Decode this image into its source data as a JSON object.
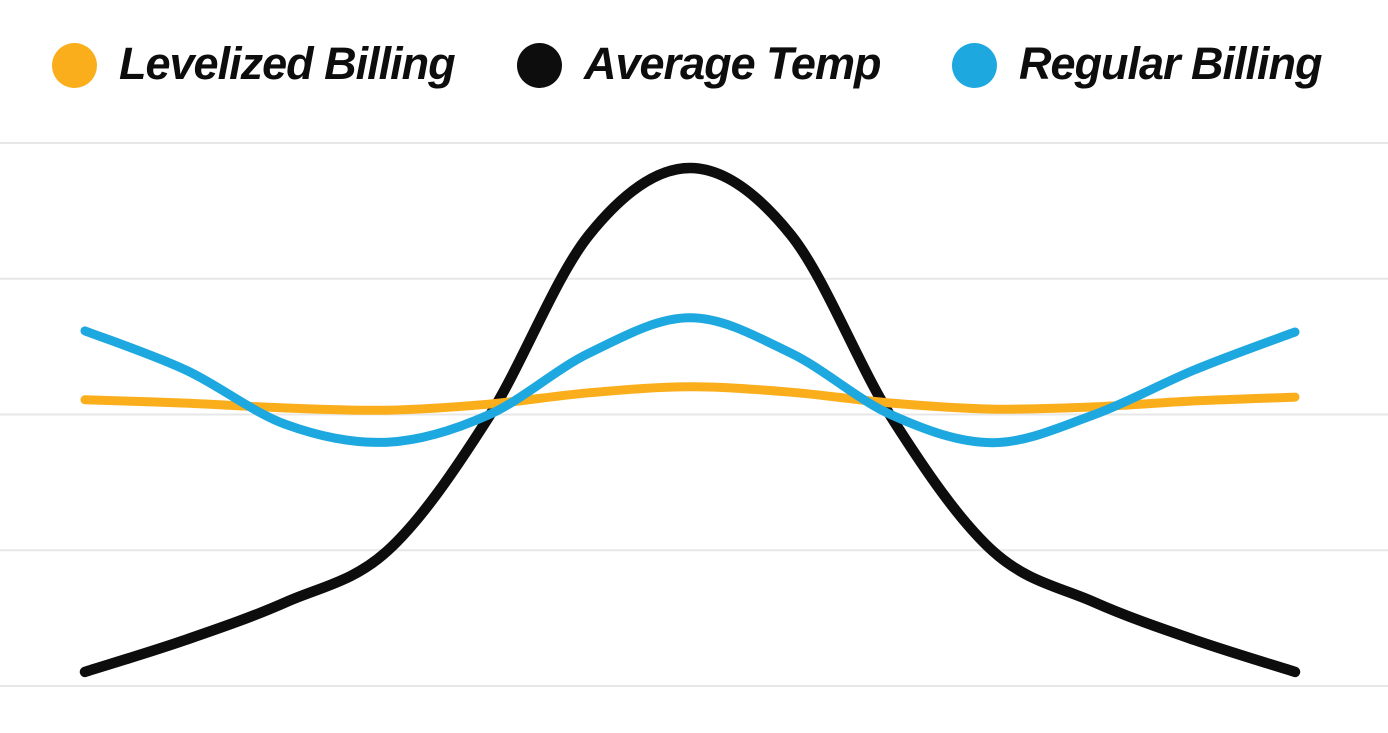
{
  "colors": {
    "background": "#ffffff",
    "gridline": "#e7e7e7",
    "text": "#0d0d0d",
    "levelized_orange": "#fbae1c",
    "temp_black": "#0d0d0d",
    "regular_blue": "#1ea8e0"
  },
  "legend": {
    "position": "top",
    "items": [
      {
        "label": "Levelized Billing",
        "color": "#fbae1c",
        "swatch": "circle"
      },
      {
        "label": "Average Temp",
        "color": "#0d0d0d",
        "swatch": "circle"
      },
      {
        "label": "Regular Billing",
        "color": "#1ea8e0",
        "swatch": "circle"
      }
    ]
  },
  "chart_data": {
    "type": "line",
    "title": "",
    "xlabel": "",
    "ylabel": "",
    "x": [
      0,
      1,
      2,
      3,
      4,
      5,
      6,
      7,
      8,
      9,
      10,
      11,
      12
    ],
    "x_tick_labels_visible": false,
    "y_tick_labels_visible": false,
    "ylim": [
      0,
      100
    ],
    "y_scale_note": "relative scale: bottom gridline = 0, top gridline = 100; chart shows no numeric axis labels",
    "grid": {
      "horizontal_lines": 5,
      "vertical_lines": 0,
      "grid_on": true
    },
    "legend_position": "top",
    "series": [
      {
        "name": "Average Temp",
        "color": "#0d0d0d",
        "line_width": 10.5,
        "values": [
          2.6,
          8.5,
          15.5,
          24.9,
          49.4,
          83.1,
          95.4,
          83.1,
          49.4,
          24.9,
          15.5,
          8.5,
          2.6
        ]
      },
      {
        "name": "Levelized Billing",
        "color": "#fbae1c",
        "line_width": 9,
        "values": [
          52.7,
          52.1,
          51.2,
          50.8,
          51.9,
          54.0,
          55.1,
          54.1,
          52.1,
          51.0,
          51.4,
          52.5,
          53.2
        ]
      },
      {
        "name": "Regular Billing",
        "color": "#1ea8e0",
        "line_width": 9,
        "values": [
          65.4,
          58.2,
          48.1,
          44.9,
          49.9,
          61.3,
          67.8,
          61.3,
          49.9,
          44.8,
          49.9,
          58.2,
          65.2
        ]
      }
    ]
  }
}
